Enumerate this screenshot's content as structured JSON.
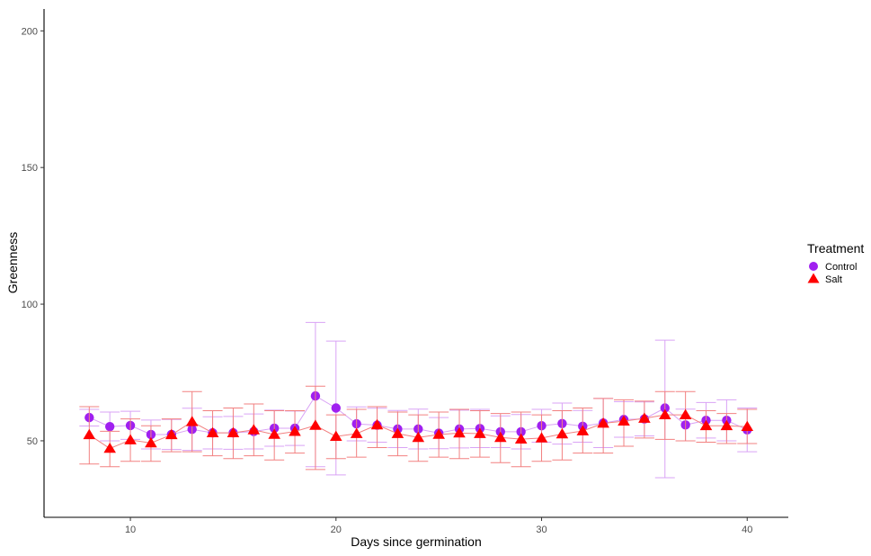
{
  "chart_data": {
    "type": "scatter",
    "title": "",
    "xlabel": "Days since germination",
    "ylabel": "Greenness",
    "xlim": [
      5.8,
      42
    ],
    "ylim": [
      22,
      208
    ],
    "x_ticks": [
      10,
      20,
      30,
      40
    ],
    "y_ticks": [
      50,
      100,
      150,
      200
    ],
    "grid": false,
    "legend_position": "right",
    "legend_title": "Treatment",
    "x": [
      8,
      9,
      10,
      11,
      12,
      13,
      14,
      15,
      16,
      17,
      18,
      19,
      20,
      21,
      22,
      23,
      24,
      25,
      26,
      27,
      28,
      29,
      30,
      31,
      32,
      33,
      34,
      35,
      36,
      37,
      38,
      39,
      40
    ],
    "series": [
      {
        "name": "Control",
        "marker": "circle",
        "color": "#A020F0",
        "error_color": "#D9A3F5",
        "values": [
          58.5,
          55.2,
          55.6,
          52.3,
          52.3,
          54.2,
          52.9,
          52.9,
          53.4,
          54.6,
          54.6,
          66.4,
          62.0,
          56.2,
          55.7,
          54.3,
          54.3,
          52.8,
          54.3,
          54.5,
          53.3,
          53.3,
          55.5,
          56.3,
          55.3,
          56.5,
          57.8,
          58.0,
          62.0,
          55.8,
          57.5,
          57.5,
          54.0
        ],
        "err_low": [
          55.4,
          50.0,
          50.5,
          47.0,
          46.8,
          46.5,
          47.0,
          46.9,
          47.0,
          48.0,
          48.3,
          40.5,
          37.5,
          50.0,
          49.5,
          47.5,
          47.0,
          47.1,
          47.4,
          47.5,
          47.5,
          47.0,
          49.5,
          48.8,
          49.5,
          47.5,
          51.3,
          51.8,
          36.5,
          50.0,
          51.0,
          50.0,
          46.0
        ],
        "err_high": [
          61.5,
          60.5,
          60.8,
          57.6,
          57.8,
          61.9,
          58.8,
          58.9,
          59.8,
          61.2,
          60.9,
          93.3,
          86.5,
          62.4,
          61.9,
          61.1,
          61.6,
          58.5,
          61.2,
          61.5,
          59.1,
          59.6,
          61.5,
          63.8,
          61.1,
          65.5,
          64.3,
          64.2,
          86.8,
          61.6,
          64.0,
          65.0,
          62.0
        ]
      },
      {
        "name": "Salt",
        "marker": "triangle",
        "color": "#FF0000",
        "error_color": "#F28080",
        "values": [
          52.2,
          47.2,
          50.3,
          49.2,
          52.2,
          57.0,
          52.9,
          52.9,
          54.0,
          52.3,
          53.4,
          55.6,
          51.6,
          52.6,
          55.8,
          52.6,
          51.2,
          52.3,
          52.8,
          52.6,
          51.2,
          50.6,
          51.0,
          52.5,
          53.6,
          56.4,
          57.2,
          58.2,
          59.5,
          59.5,
          55.5,
          55.5,
          55.2
        ],
        "err_low": [
          41.5,
          40.5,
          42.5,
          42.5,
          46.0,
          46.0,
          44.5,
          43.5,
          44.5,
          43.0,
          45.5,
          39.5,
          43.5,
          44.0,
          47.5,
          44.5,
          42.5,
          44.0,
          43.5,
          44.0,
          42.0,
          40.5,
          42.5,
          43.0,
          45.5,
          45.5,
          48.0,
          51.0,
          50.5,
          50.0,
          49.5,
          49.0,
          49.0
        ],
        "err_high": [
          62.5,
          53.5,
          58.0,
          55.5,
          58.0,
          68.0,
          61.0,
          62.0,
          63.5,
          61.0,
          61.0,
          70.0,
          59.5,
          61.5,
          62.5,
          60.5,
          59.5,
          60.5,
          61.5,
          61.0,
          60.0,
          60.5,
          59.5,
          61.0,
          62.0,
          65.5,
          65.0,
          64.5,
          68.0,
          68.0,
          61.0,
          60.0,
          61.5
        ]
      }
    ]
  }
}
